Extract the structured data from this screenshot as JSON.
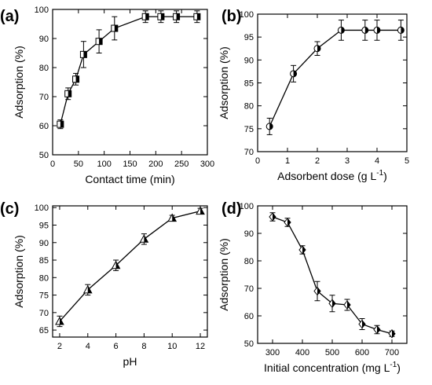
{
  "chart_data": [
    {
      "panel": "(a)",
      "type": "line",
      "xlabel": "Contact time (min)",
      "ylabel": "Adsorption (%)",
      "xlim": [
        0,
        300
      ],
      "ylim": [
        50,
        100
      ],
      "xticks": [
        "0",
        "50",
        "100",
        "150",
        "200",
        "250",
        "300"
      ],
      "yticks": [
        "50",
        "60",
        "70",
        "80",
        "90",
        "100"
      ],
      "marker": "half-filled square",
      "x": [
        15,
        30,
        45,
        60,
        90,
        120,
        180,
        210,
        240,
        280
      ],
      "y": [
        60.5,
        71,
        76,
        84.5,
        89,
        93.5,
        97.5,
        97.5,
        97.5,
        97.5
      ],
      "error": [
        1.5,
        2,
        2,
        4.5,
        4,
        4,
        2,
        2,
        2,
        2
      ]
    },
    {
      "panel": "(b)",
      "type": "line",
      "xlabel": "Adsorbent dose (g L",
      "xlabel_superscript": "-1",
      "xlabel_suffix": ")",
      "ylabel": "Adsorption (%)",
      "xlim": [
        0,
        5
      ],
      "ylim": [
        70,
        100
      ],
      "xticks": [
        "0",
        "1",
        "2",
        "3",
        "4",
        "5"
      ],
      "yticks": [
        "70",
        "75",
        "80",
        "85",
        "90",
        "95",
        "100"
      ],
      "marker": "half-filled circle",
      "x": [
        0.4,
        1.2,
        2.0,
        2.8,
        3.6,
        4.0,
        4.8
      ],
      "y": [
        75.5,
        87,
        92.5,
        96.5,
        96.5,
        96.5,
        96.5
      ],
      "error": [
        1.8,
        1.8,
        1.5,
        2.2,
        2.2,
        2.2,
        2.2
      ]
    },
    {
      "panel": "(c)",
      "type": "line",
      "xlabel": "pH",
      "ylabel": "Adsorption (%)",
      "xlim": [
        1.5,
        12.5
      ],
      "ylim": [
        63,
        100.5
      ],
      "xticks": [
        "2",
        "4",
        "6",
        "8",
        "10",
        "12"
      ],
      "yticks": [
        "65",
        "70",
        "75",
        "80",
        "85",
        "90",
        "95",
        "100"
      ],
      "marker": "half-filled triangle",
      "x": [
        2,
        4,
        6,
        8,
        10,
        12
      ],
      "y": [
        67.5,
        76.5,
        83.5,
        91,
        97,
        99
      ],
      "error": [
        1.5,
        1.5,
        1.5,
        1.5,
        0.8,
        0.8
      ]
    },
    {
      "panel": "(d)",
      "type": "line",
      "xlabel": "Initial concentration (mg L",
      "xlabel_superscript": "-1",
      "xlabel_suffix": ")",
      "ylabel": "Adsorption (%)",
      "xlim": [
        250,
        750
      ],
      "ylim": [
        50,
        100
      ],
      "xticks": [
        "300",
        "400",
        "500",
        "600",
        "700"
      ],
      "yticks": [
        "50",
        "60",
        "70",
        "80",
        "90",
        "100"
      ],
      "marker": "half-filled diamond",
      "x": [
        300,
        350,
        400,
        450,
        500,
        550,
        600,
        650,
        700
      ],
      "y": [
        96,
        94,
        84,
        69,
        64.5,
        64,
        57,
        55,
        53.5
      ],
      "error": [
        1.5,
        1.5,
        1.5,
        3.5,
        3,
        2,
        2,
        1.5,
        1
      ]
    }
  ]
}
